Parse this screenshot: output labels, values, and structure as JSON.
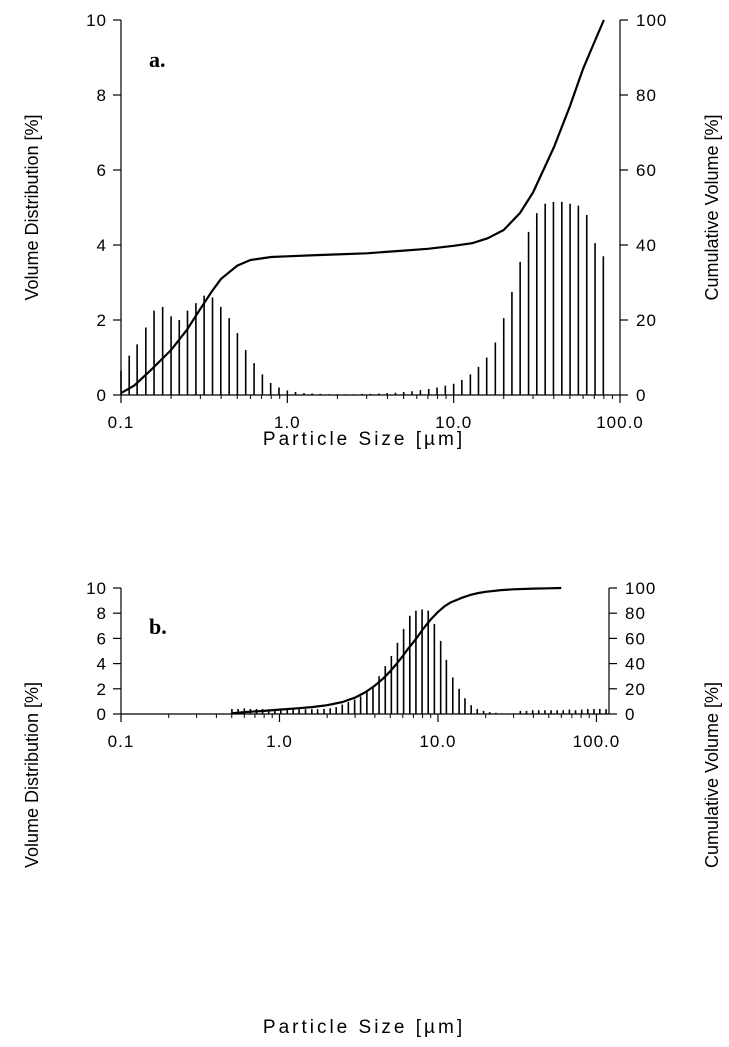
{
  "chart_data": [
    {
      "type": "bar",
      "panel_label": "a.",
      "xlabel": "Particle Size [µm]",
      "ylabel": "Volume Distribution [%]",
      "y2label": "Cumulative Volume [%]",
      "x_scale": "log",
      "xlim": [
        0.1,
        100
      ],
      "ylim": [
        0,
        10
      ],
      "y2lim": [
        0,
        100
      ],
      "x_ticks": [
        "0.1",
        "1.0",
        "10.0",
        "100.0"
      ],
      "y_ticks": [
        "0",
        "2",
        "4",
        "6",
        "8",
        "10"
      ],
      "y2_ticks": [
        "0",
        "20",
        "40",
        "60",
        "80",
        "100"
      ],
      "series": [
        {
          "kind": "bar",
          "x": [
            0.1,
            0.112,
            0.125,
            0.141,
            0.158,
            0.178,
            0.2,
            0.224,
            0.251,
            0.282,
            0.316,
            0.355,
            0.398,
            0.447,
            0.501,
            0.562,
            0.631,
            0.708,
            0.794,
            0.891,
            1.0,
            1.12,
            1.26,
            1.41,
            1.58,
            1.78,
            2.0,
            2.24,
            2.51,
            2.82,
            3.16,
            3.55,
            3.98,
            4.47,
            5.01,
            5.62,
            6.31,
            7.08,
            7.94,
            8.91,
            10.0,
            11.2,
            12.6,
            14.1,
            15.8,
            17.8,
            20.0,
            22.4,
            25.1,
            28.2,
            31.6,
            35.5,
            39.8,
            44.7,
            50.1,
            56.2,
            63.1,
            70.8,
            79.4
          ],
          "values": [
            0.65,
            1.05,
            1.35,
            1.8,
            2.25,
            2.35,
            2.1,
            2.0,
            2.25,
            2.45,
            2.65,
            2.6,
            2.35,
            2.05,
            1.65,
            1.2,
            0.85,
            0.55,
            0.32,
            0.2,
            0.12,
            0.08,
            0.05,
            0.04,
            0.03,
            0.02,
            0.02,
            0.02,
            0.02,
            0.03,
            0.03,
            0.04,
            0.05,
            0.06,
            0.08,
            0.1,
            0.13,
            0.16,
            0.2,
            0.25,
            0.3,
            0.4,
            0.55,
            0.75,
            1.0,
            1.4,
            2.05,
            2.75,
            3.55,
            4.35,
            4.85,
            5.1,
            5.15,
            5.15,
            5.1,
            5.05,
            4.8,
            4.05,
            3.7
          ]
        },
        {
          "kind": "line",
          "axis": "right",
          "x": [
            0.1,
            0.12,
            0.15,
            0.2,
            0.25,
            0.3,
            0.35,
            0.4,
            0.5,
            0.6,
            0.8,
            1.0,
            1.5,
            2.0,
            3.0,
            5.0,
            7.0,
            10.0,
            13.0,
            16.0,
            20.0,
            25.0,
            30.0,
            40.0,
            50.0,
            60.0,
            70.0,
            80.0
          ],
          "values": [
            0.5,
            2.5,
            6.5,
            12.0,
            17.5,
            23.0,
            27.5,
            31.0,
            34.5,
            36.0,
            36.8,
            37.0,
            37.3,
            37.5,
            37.8,
            38.5,
            39.0,
            39.8,
            40.5,
            41.8,
            44.0,
            48.5,
            54.0,
            66.0,
            77.0,
            87.0,
            94.0,
            100.0
          ]
        }
      ]
    },
    {
      "type": "bar",
      "panel_label": "b.",
      "xlabel": "Particle Size [µm]",
      "ylabel": "Volume Distribution [%]",
      "y2label": "Cumulative Volume [%]",
      "x_scale": "log",
      "xlim": [
        0.1,
        120
      ],
      "ylim": [
        0,
        10
      ],
      "y2lim": [
        0,
        100
      ],
      "x_ticks": [
        "0.1",
        "1.0",
        "10.0",
        "100.0"
      ],
      "y_ticks": [
        "0",
        "2",
        "4",
        "6",
        "8",
        "10"
      ],
      "y2_ticks": [
        "0",
        "20",
        "40",
        "60",
        "80",
        "100"
      ],
      "series": [
        {
          "kind": "bar",
          "x": [
            0.501,
            0.548,
            0.6,
            0.655,
            0.716,
            0.782,
            0.855,
            0.935,
            1.02,
            1.12,
            1.22,
            1.33,
            1.46,
            1.6,
            1.74,
            1.91,
            2.09,
            2.28,
            2.49,
            2.72,
            2.98,
            3.25,
            3.56,
            3.89,
            4.25,
            4.65,
            5.08,
            5.55,
            6.07,
            6.64,
            7.26,
            7.94,
            8.68,
            9.49,
            10.4,
            11.3,
            12.4,
            13.6,
            14.8,
            16.2,
            17.7,
            19.4,
            21.2,
            23.2,
            25.3,
            27.7,
            30.3,
            33.1,
            36.2,
            39.6,
            43.2,
            47.3,
            51.7,
            56.5,
            61.7,
            67.5,
            73.8,
            80.7,
            88.2,
            96.4,
            105.0,
            115.0
          ],
          "values": [
            0.4,
            0.4,
            0.45,
            0.4,
            0.4,
            0.4,
            0.38,
            0.38,
            0.38,
            0.38,
            0.38,
            0.38,
            0.38,
            0.38,
            0.38,
            0.4,
            0.45,
            0.55,
            0.75,
            0.95,
            1.15,
            1.4,
            1.75,
            2.2,
            3.0,
            3.8,
            4.6,
            5.65,
            6.75,
            7.8,
            8.2,
            8.3,
            8.2,
            7.15,
            5.8,
            4.3,
            2.9,
            2.0,
            1.25,
            0.7,
            0.4,
            0.25,
            0.15,
            0.1,
            0.05,
            0.05,
            0.05,
            0.25,
            0.25,
            0.3,
            0.3,
            0.3,
            0.3,
            0.3,
            0.3,
            0.35,
            0.3,
            0.35,
            0.4,
            0.4,
            0.4,
            0.38
          ]
        },
        {
          "kind": "line",
          "axis": "right",
          "x": [
            0.5,
            0.6,
            0.8,
            1.0,
            1.3,
            1.6,
            2.0,
            2.5,
            3.0,
            3.5,
            4.0,
            4.5,
            5.0,
            5.5,
            6.0,
            6.5,
            7.0,
            7.5,
            8.0,
            9.0,
            10.0,
            11.0,
            12.0,
            14.0,
            16.0,
            18.0,
            20.0,
            25.0,
            30.0,
            40.0,
            50.0,
            60.0
          ],
          "values": [
            0.5,
            1.5,
            2.5,
            3.5,
            4.5,
            5.5,
            7.0,
            9.5,
            13.0,
            17.5,
            22.5,
            28.0,
            34.0,
            40.0,
            46.0,
            52.0,
            57.0,
            62.0,
            67.0,
            75.0,
            81.0,
            85.5,
            88.5,
            92.0,
            94.5,
            96.0,
            97.0,
            98.3,
            99.0,
            99.5,
            99.8,
            100.0
          ]
        }
      ]
    }
  ]
}
